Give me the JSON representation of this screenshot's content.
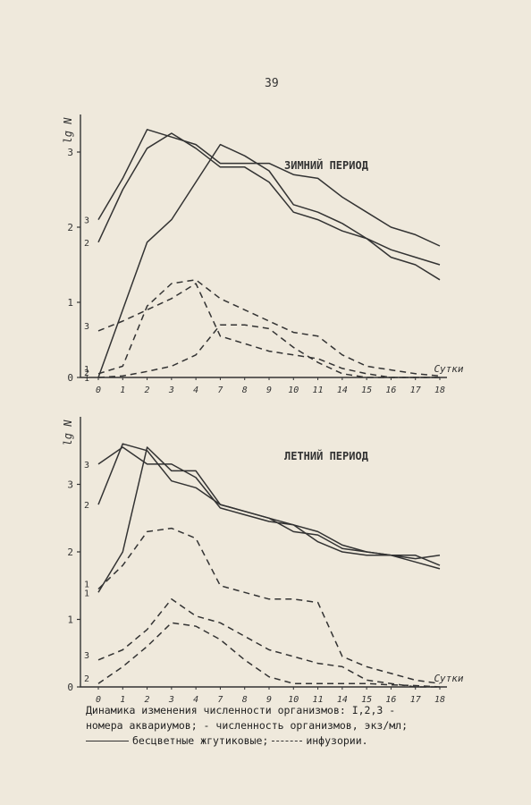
{
  "page_number": "39",
  "caption": {
    "line1": "Динамика изменения численности организмов: I,2,3 -",
    "line2": "номера аквариумов;     - численность организмов, экз/мл;",
    "line3_solid": "бесцветные жгутиковые;",
    "line3_dashed": "инфузории."
  },
  "colors": {
    "ink": "#333333",
    "paper": "#efe9dc"
  },
  "chart_data": [
    {
      "type": "line",
      "title": "ЗИМНИЙ ПЕРИОД",
      "ylabel": "lg N",
      "xlabel": "Сутки",
      "categories": [
        "0",
        "1",
        "2",
        "3",
        "4",
        "7",
        "8",
        "9",
        "10",
        "11",
        "14",
        "15",
        "16",
        "17",
        "18"
      ],
      "yticks": [
        "0",
        "1",
        "2",
        "3"
      ],
      "ylim": [
        0,
        3.5
      ],
      "legend": "none",
      "grid": false,
      "series": [
        {
          "name": "1",
          "style": "solid",
          "values": [
            0.0,
            0.9,
            1.8,
            2.1,
            2.6,
            3.1,
            2.95,
            2.75,
            2.3,
            2.2,
            2.05,
            1.85,
            1.6,
            1.5,
            1.3
          ]
        },
        {
          "name": "2",
          "style": "solid",
          "values": [
            1.8,
            2.5,
            3.05,
            3.25,
            3.05,
            2.8,
            2.8,
            2.6,
            2.2,
            2.1,
            1.95,
            1.85,
            1.7,
            1.6,
            1.5
          ]
        },
        {
          "name": "3",
          "style": "solid",
          "values": [
            2.1,
            2.65,
            3.3,
            3.2,
            3.1,
            2.85,
            2.85,
            2.85,
            2.7,
            2.65,
            2.4,
            2.2,
            2.0,
            1.9,
            1.75
          ]
        },
        {
          "name": "1",
          "style": "dashed",
          "values": [
            0.05,
            0.15,
            0.95,
            1.25,
            1.3,
            1.05,
            0.9,
            0.75,
            0.6,
            0.55,
            0.3,
            0.15,
            0.1,
            0.05,
            0.02
          ]
        },
        {
          "name": "2",
          "style": "dashed",
          "values": [
            0.0,
            0.02,
            0.08,
            0.15,
            0.3,
            0.7,
            0.7,
            0.65,
            0.4,
            0.2,
            0.05,
            0.0,
            0.0,
            0.0,
            0.0
          ]
        },
        {
          "name": "3",
          "style": "dashed",
          "values": [
            0.62,
            0.75,
            0.9,
            1.05,
            1.25,
            0.55,
            0.45,
            0.35,
            0.3,
            0.25,
            0.12,
            0.05,
            0.0,
            0.0,
            0.0
          ]
        }
      ]
    },
    {
      "type": "line",
      "title": "ЛЕТНИЙ ПЕРИОД",
      "ylabel": "lg N",
      "xlabel": "Сутки",
      "categories": [
        "0",
        "1",
        "2",
        "3",
        "4",
        "7",
        "8",
        "9",
        "10",
        "11",
        "14",
        "15",
        "16",
        "17",
        "18"
      ],
      "yticks": [
        "0",
        "1",
        "2",
        "3"
      ],
      "ylim": [
        0,
        4
      ],
      "legend": "none",
      "grid": false,
      "series": [
        {
          "name": "1",
          "style": "solid",
          "values": [
            1.4,
            2.0,
            3.55,
            3.2,
            3.2,
            2.7,
            2.6,
            2.5,
            2.3,
            2.25,
            2.05,
            2.0,
            1.95,
            1.9,
            1.95
          ]
        },
        {
          "name": "2",
          "style": "solid",
          "values": [
            2.7,
            3.6,
            3.5,
            3.05,
            2.95,
            2.7,
            2.6,
            2.5,
            2.4,
            2.15,
            2.0,
            1.95,
            1.95,
            1.85,
            1.75
          ]
        },
        {
          "name": "3",
          "style": "solid",
          "values": [
            3.3,
            3.55,
            3.3,
            3.3,
            3.1,
            2.65,
            2.55,
            2.45,
            2.4,
            2.3,
            2.1,
            2.0,
            1.95,
            1.95,
            1.8
          ]
        },
        {
          "name": "1",
          "style": "dashed",
          "values": [
            1.45,
            1.8,
            2.3,
            2.35,
            2.2,
            1.5,
            1.4,
            1.3,
            1.3,
            1.25,
            0.45,
            0.3,
            0.2,
            0.1,
            0.05
          ]
        },
        {
          "name": "2",
          "style": "dashed",
          "values": [
            0.05,
            0.3,
            0.6,
            0.95,
            0.9,
            0.7,
            0.4,
            0.15,
            0.05,
            0.05,
            0.05,
            0.05,
            0.03,
            0.02,
            0.0
          ]
        },
        {
          "name": "3",
          "style": "dashed",
          "values": [
            0.4,
            0.55,
            0.85,
            1.3,
            1.05,
            0.95,
            0.75,
            0.55,
            0.45,
            0.35,
            0.3,
            0.1,
            0.05,
            0.0,
            0.0
          ]
        }
      ]
    }
  ]
}
